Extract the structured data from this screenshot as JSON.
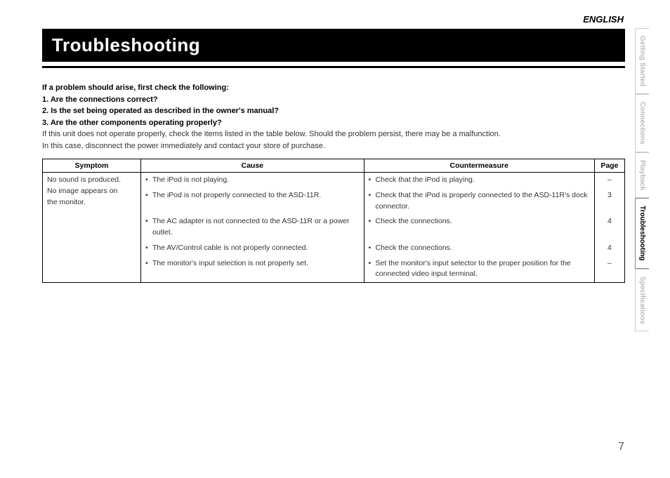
{
  "language_label": "ENGLISH",
  "title": "Troubleshooting",
  "intro": {
    "lead": "If a problem should arise, first check the following:",
    "items": [
      "1.  Are the connections correct?",
      "2.  Is the set being operated as described in the owner's manual?",
      "3.  Are the other components operating properly?"
    ],
    "note1": "If this unit does not operate properly, check the items listed in the table below. Should the problem persist, there may be a malfunction.",
    "note2": "In this case, disconnect the power immediately and contact your store of purchase."
  },
  "table": {
    "headers": {
      "symptom": "Symptom",
      "cause": "Cause",
      "counter": "Countermeasure",
      "page": "Page"
    },
    "symptom_lines": [
      "No sound is produced.",
      "No image appears on",
      "the monitor."
    ],
    "rows": [
      {
        "cause": "The iPod is not playing.",
        "counter": "Check that the iPod is playing.",
        "page": "–"
      },
      {
        "cause": "The iPod is not properly connected to the ASD-11R.",
        "counter": "Check that the iPod is properly connected to the ASD-11R's dock connector.",
        "page": "3"
      },
      {
        "cause": "The AC adapter is not connected to the ASD-11R or a power outlet.",
        "counter": "Check the connections.",
        "page": "4"
      },
      {
        "cause": "The AV/Control cable is not properly connected.",
        "counter": "Check the connections.",
        "page": "4"
      },
      {
        "cause": "The monitor's input selection is not properly set.",
        "counter": "Set the monitor's input selector to the proper position for the connected video input terminal.",
        "page": "–"
      }
    ]
  },
  "page_number": "7",
  "side_nav": [
    {
      "label": "Getting Started",
      "active": false
    },
    {
      "label": "Connections",
      "active": false
    },
    {
      "label": "Playback",
      "active": false
    },
    {
      "label": "Troubleshooting",
      "active": true
    },
    {
      "label": "Specifications",
      "active": false
    }
  ],
  "colors": {
    "title_bg": "#000000",
    "title_fg": "#ffffff",
    "text": "#333333",
    "border": "#000000",
    "nav_inactive": "#bbbbbb",
    "nav_active": "#000000"
  }
}
